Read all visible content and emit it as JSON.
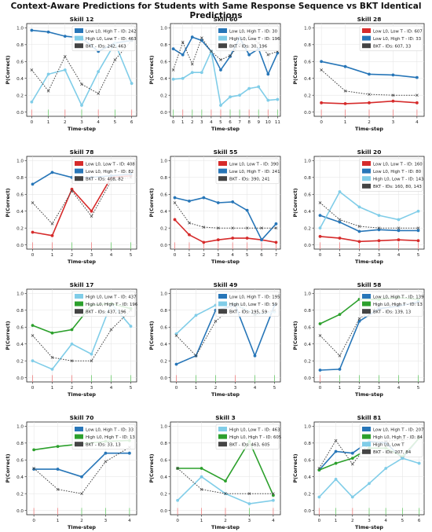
{
  "title": "Context-Aware Predictions for Students with Same Response Sequence vs BKT Identical Predictions",
  "colors": {
    "low_l0_high_t": "#2776b8",
    "high_l0_low_t": "#80cde8",
    "low_l0_low_t": "#d62b2b",
    "high_l0_high_t": "#2ca02c",
    "bkt": "#444444"
  },
  "chart_data": [
    {
      "type": "line",
      "title": "Skill 12",
      "xlabel": "Time-step",
      "ylabel": "P(Correct)",
      "ylim": [
        -0.05,
        1.05
      ],
      "x": [
        0,
        1,
        2,
        3,
        4,
        5,
        6
      ],
      "legend": "top-right",
      "grid": true,
      "series": [
        {
          "name": "Low L0, High T - ID: 242",
          "color_key": "low_l0_high_t",
          "values": [
            0.97,
            0.95,
            0.9,
            0.88,
            0.72,
            0.82,
            0.85
          ]
        },
        {
          "name": "High L0, Low T - ID: 463",
          "color_key": "high_l0_low_t",
          "values": [
            0.12,
            0.45,
            0.5,
            0.08,
            0.48,
            0.82,
            0.34
          ]
        },
        {
          "name": "BKT - IDs: 242, 463",
          "color_key": "bkt",
          "dashed": true,
          "values": [
            0.5,
            0.25,
            0.66,
            0.33,
            0.22,
            0.62,
            0.85
          ]
        }
      ],
      "responses": [
        0,
        1,
        0,
        1,
        0,
        1,
        0
      ]
    },
    {
      "type": "line",
      "title": "Skill 60",
      "xlabel": "Time-step",
      "ylabel": "P(Correct)",
      "ylim": [
        -0.05,
        1.05
      ],
      "x": [
        0,
        1,
        2,
        3,
        4,
        5,
        6,
        7,
        8,
        9,
        10,
        11
      ],
      "legend": "top-right",
      "grid": true,
      "series": [
        {
          "name": "Low L0, High T - ID: 30",
          "color_key": "low_l0_high_t",
          "values": [
            0.75,
            0.68,
            0.89,
            0.85,
            0.72,
            0.5,
            0.66,
            0.88,
            0.68,
            0.75,
            0.45,
            0.7
          ]
        },
        {
          "name": "High L0, Low T - ID: 196",
          "color_key": "high_l0_low_t",
          "values": [
            0.39,
            0.4,
            0.47,
            0.47,
            0.72,
            0.08,
            0.18,
            0.2,
            0.28,
            0.3,
            0.14,
            0.15
          ]
        },
        {
          "name": "BKT - IDs: 30, 196",
          "color_key": "bkt",
          "dashed": true,
          "values": [
            0.5,
            0.83,
            0.57,
            0.88,
            0.72,
            0.62,
            0.67,
            0.8,
            0.9,
            0.82,
            0.68,
            0.72
          ]
        }
      ],
      "responses": [
        1,
        0,
        1,
        1,
        0,
        0,
        1,
        1,
        0,
        1,
        0,
        1
      ]
    },
    {
      "type": "line",
      "title": "Skill 28",
      "xlabel": "Time-step",
      "ylabel": "P(Correct)",
      "ylim": [
        -0.05,
        1.05
      ],
      "x": [
        0,
        1,
        2,
        3,
        4
      ],
      "legend": "top-right",
      "grid": true,
      "series": [
        {
          "name": "Low L0, Low T - ID: 607",
          "color_key": "low_l0_low_t",
          "values": [
            0.11,
            0.1,
            0.11,
            0.13,
            0.11
          ]
        },
        {
          "name": "Low L0, High T - ID: 33",
          "color_key": "low_l0_high_t",
          "values": [
            0.6,
            0.54,
            0.45,
            0.44,
            0.41
          ]
        },
        {
          "name": "BKT - IDs: 607, 33",
          "color_key": "bkt",
          "dashed": true,
          "values": [
            0.5,
            0.25,
            0.21,
            0.2,
            0.2
          ]
        }
      ],
      "responses": [
        0,
        0,
        0,
        0,
        0
      ]
    },
    {
      "type": "line",
      "title": "Skill 78",
      "xlabel": "Time-step",
      "ylabel": "P(Correct)",
      "ylim": [
        -0.05,
        1.05
      ],
      "x": [
        0,
        1,
        2,
        3,
        4,
        5
      ],
      "legend": "top-right",
      "grid": true,
      "series": [
        {
          "name": "Low L0, Low T - ID: 408",
          "color_key": "low_l0_low_t",
          "values": [
            0.15,
            0.11,
            0.66,
            0.4,
            0.8,
            0.82
          ]
        },
        {
          "name": "Low L0, High T - ID: 82",
          "color_key": "low_l0_high_t",
          "values": [
            0.72,
            0.86,
            0.8,
            0.8,
            0.82,
            0.84
          ]
        },
        {
          "name": "BKT - IDs: 408, 82",
          "color_key": "bkt",
          "dashed": true,
          "values": [
            0.5,
            0.25,
            0.64,
            0.34,
            0.76,
            0.8
          ]
        }
      ],
      "responses": [
        0,
        0,
        1,
        0,
        1,
        1
      ]
    },
    {
      "type": "line",
      "title": "Skill 55",
      "xlabel": "Time-step",
      "ylabel": "P(Correct)",
      "ylim": [
        -0.05,
        1.05
      ],
      "x": [
        0,
        1,
        2,
        3,
        4,
        5,
        6,
        7
      ],
      "legend": "top-right",
      "grid": true,
      "series": [
        {
          "name": "Low L0, Low T - ID: 390",
          "color_key": "low_l0_low_t",
          "values": [
            0.3,
            0.12,
            0.03,
            0.06,
            0.08,
            0.08,
            0.06,
            0.03
          ]
        },
        {
          "name": "Low L0, High T - ID: 241",
          "color_key": "low_l0_high_t",
          "values": [
            0.56,
            0.52,
            0.56,
            0.5,
            0.51,
            0.41,
            0.06,
            0.25
          ]
        },
        {
          "name": "BKT - IDs: 390, 241",
          "color_key": "bkt",
          "dashed": true,
          "values": [
            0.5,
            0.26,
            0.21,
            0.2,
            0.2,
            0.2,
            0.2,
            0.2
          ]
        }
      ],
      "responses": [
        0,
        0,
        0,
        0,
        0,
        0,
        0,
        0
      ]
    },
    {
      "type": "line",
      "title": "Skill 20",
      "xlabel": "Time-step",
      "ylabel": "P(Correct)",
      "ylim": [
        -0.05,
        1.05
      ],
      "x": [
        0,
        1,
        2,
        3,
        4,
        5
      ],
      "legend": "top-right",
      "grid": true,
      "series": [
        {
          "name": "Low L0, Low T - ID: 160",
          "color_key": "low_l0_low_t",
          "values": [
            0.1,
            0.08,
            0.04,
            0.05,
            0.06,
            0.05
          ]
        },
        {
          "name": "Low L0, High T - ID: 80",
          "color_key": "low_l0_high_t",
          "values": [
            0.35,
            0.27,
            0.16,
            0.18,
            0.17,
            0.17
          ]
        },
        {
          "name": "High L0, Low T - ID: 143",
          "color_key": "high_l0_low_t",
          "values": [
            0.2,
            0.63,
            0.45,
            0.35,
            0.3,
            0.4
          ]
        },
        {
          "name": "BKT - IDs: 160, 80, 143",
          "color_key": "bkt",
          "dashed": true,
          "values": [
            0.5,
            0.3,
            0.22,
            0.2,
            0.2,
            0.2
          ]
        }
      ],
      "responses": [
        0,
        0,
        0,
        0,
        0,
        0
      ]
    },
    {
      "type": "line",
      "title": "Skill 17",
      "xlabel": "Time-step",
      "ylabel": "P(Correct)",
      "ylim": [
        -0.05,
        1.05
      ],
      "x": [
        0,
        1,
        2,
        3,
        4,
        5
      ],
      "legend": "top-right",
      "grid": true,
      "series": [
        {
          "name": "High L0, Low T - ID: 437",
          "color_key": "high_l0_low_t",
          "values": [
            0.2,
            0.1,
            0.4,
            0.28,
            0.88,
            0.61
          ]
        },
        {
          "name": "High L0, High T - ID: 196",
          "color_key": "high_l0_high_t",
          "values": [
            0.62,
            0.53,
            0.57,
            0.86,
            0.88,
            0.82
          ]
        },
        {
          "name": "BKT - IDs: 437, 196",
          "color_key": "bkt",
          "dashed": true,
          "values": [
            0.5,
            0.24,
            0.2,
            0.2,
            0.57,
            0.8
          ]
        }
      ],
      "responses": [
        0,
        0,
        0,
        1,
        1,
        1
      ]
    },
    {
      "type": "line",
      "title": "Skill 49",
      "xlabel": "Time-step",
      "ylabel": "P(Correct)",
      "ylim": [
        -0.05,
        1.05
      ],
      "x": [
        0,
        1,
        2,
        3,
        4,
        5
      ],
      "legend": "top-right",
      "grid": true,
      "series": [
        {
          "name": "Low L0, High T - ID: 195",
          "color_key": "low_l0_high_t",
          "values": [
            0.16,
            0.26,
            0.8,
            0.86,
            0.26,
            0.86
          ]
        },
        {
          "name": "High L0, Low T - ID: 59",
          "color_key": "high_l0_low_t",
          "values": [
            0.52,
            0.74,
            0.86,
            0.88,
            0.75,
            0.78
          ]
        },
        {
          "name": "BKT - IDs: 195, 59",
          "color_key": "bkt",
          "dashed": true,
          "values": [
            0.5,
            0.26,
            0.67,
            0.86,
            0.75,
            0.8
          ]
        }
      ],
      "responses": [
        0,
        1,
        1,
        0,
        1,
        1
      ]
    },
    {
      "type": "line",
      "title": "Skill 58",
      "xlabel": "Time-step",
      "ylabel": "P(Correct)",
      "ylim": [
        -0.05,
        1.05
      ],
      "x": [
        0,
        1,
        2,
        3,
        4,
        5
      ],
      "legend": "top-right",
      "grid": true,
      "series": [
        {
          "name": "Low L0, High T - ID: 139",
          "color_key": "low_l0_high_t",
          "values": [
            0.09,
            0.1,
            0.67,
            0.82,
            0.85,
            0.9
          ]
        },
        {
          "name": "High L0, High T - ID: 13",
          "color_key": "high_l0_high_t",
          "values": [
            0.64,
            0.75,
            0.93,
            0.93,
            0.95,
            0.93
          ]
        },
        {
          "name": "BKT - IDs: 139, 13",
          "color_key": "bkt",
          "dashed": true,
          "values": [
            0.5,
            0.26,
            0.7,
            0.86,
            0.87,
            0.88
          ]
        }
      ],
      "responses": [
        0,
        1,
        1,
        1,
        1,
        1
      ]
    },
    {
      "type": "line",
      "title": "Skill 70",
      "xlabel": "Time-step",
      "ylabel": "P(Correct)",
      "ylim": [
        -0.05,
        1.05
      ],
      "x": [
        0,
        1,
        2,
        3,
        4
      ],
      "legend": "top-right",
      "grid": true,
      "series": [
        {
          "name": "Low L0, High T - ID: 33",
          "color_key": "low_l0_high_t",
          "values": [
            0.49,
            0.49,
            0.4,
            0.68,
            0.68
          ]
        },
        {
          "name": "High L0, High T - ID: 13",
          "color_key": "high_l0_high_t",
          "values": [
            0.72,
            0.76,
            0.79,
            0.82,
            0.83
          ]
        },
        {
          "name": "BKT - IDs: 33, 13",
          "color_key": "bkt",
          "dashed": true,
          "values": [
            0.5,
            0.25,
            0.2,
            0.58,
            0.75
          ]
        }
      ],
      "responses": [
        0,
        0,
        1,
        1,
        1
      ]
    },
    {
      "type": "line",
      "title": "Skill 3",
      "xlabel": "Time-step",
      "ylabel": "P(Correct)",
      "ylim": [
        -0.05,
        1.05
      ],
      "x": [
        0,
        1,
        2,
        3,
        4
      ],
      "legend": "top-right",
      "grid": true,
      "series": [
        {
          "name": "High L0, Low T - ID: 463",
          "color_key": "high_l0_low_t",
          "values": [
            0.12,
            0.4,
            0.2,
            0.08,
            0.12
          ]
        },
        {
          "name": "High L0, High T - ID: 605",
          "color_key": "high_l0_high_t",
          "values": [
            0.5,
            0.5,
            0.35,
            0.82,
            0.18
          ]
        },
        {
          "name": "BKT - IDs: 463, 605",
          "color_key": "bkt",
          "dashed": true,
          "values": [
            0.5,
            0.25,
            0.2,
            0.2,
            0.2
          ]
        }
      ],
      "responses": [
        0,
        0,
        0,
        1,
        0
      ]
    },
    {
      "type": "line",
      "title": "Skill 81",
      "xlabel": "Time-step",
      "ylabel": "P(Correct)",
      "ylim": [
        -0.05,
        1.05
      ],
      "x": [
        0,
        1,
        2,
        3,
        4,
        5,
        6
      ],
      "legend": "top-right",
      "grid": true,
      "series": [
        {
          "name": "Low L0, High T - ID: 207",
          "color_key": "low_l0_high_t",
          "values": [
            0.48,
            0.7,
            0.68,
            0.82,
            0.8,
            0.62,
            0.86
          ]
        },
        {
          "name": "High L0, High T - ID: 84",
          "color_key": "high_l0_high_t",
          "values": [
            0.48,
            0.56,
            0.62,
            0.74,
            0.74,
            0.64,
            0.86
          ]
        },
        {
          "name": "High L0, Low T",
          "color_key": "high_l0_low_t",
          "values": [
            0.16,
            0.37,
            0.16,
            0.32,
            0.5,
            0.62,
            0.56
          ]
        },
        {
          "name": "BKT - IDs: 207, 84",
          "color_key": "bkt",
          "dashed": true,
          "values": [
            0.5,
            0.83,
            0.55,
            0.8,
            0.82,
            0.84,
            0.86
          ]
        }
      ],
      "responses": [
        0,
        1,
        0,
        1,
        1,
        1,
        1
      ]
    }
  ]
}
